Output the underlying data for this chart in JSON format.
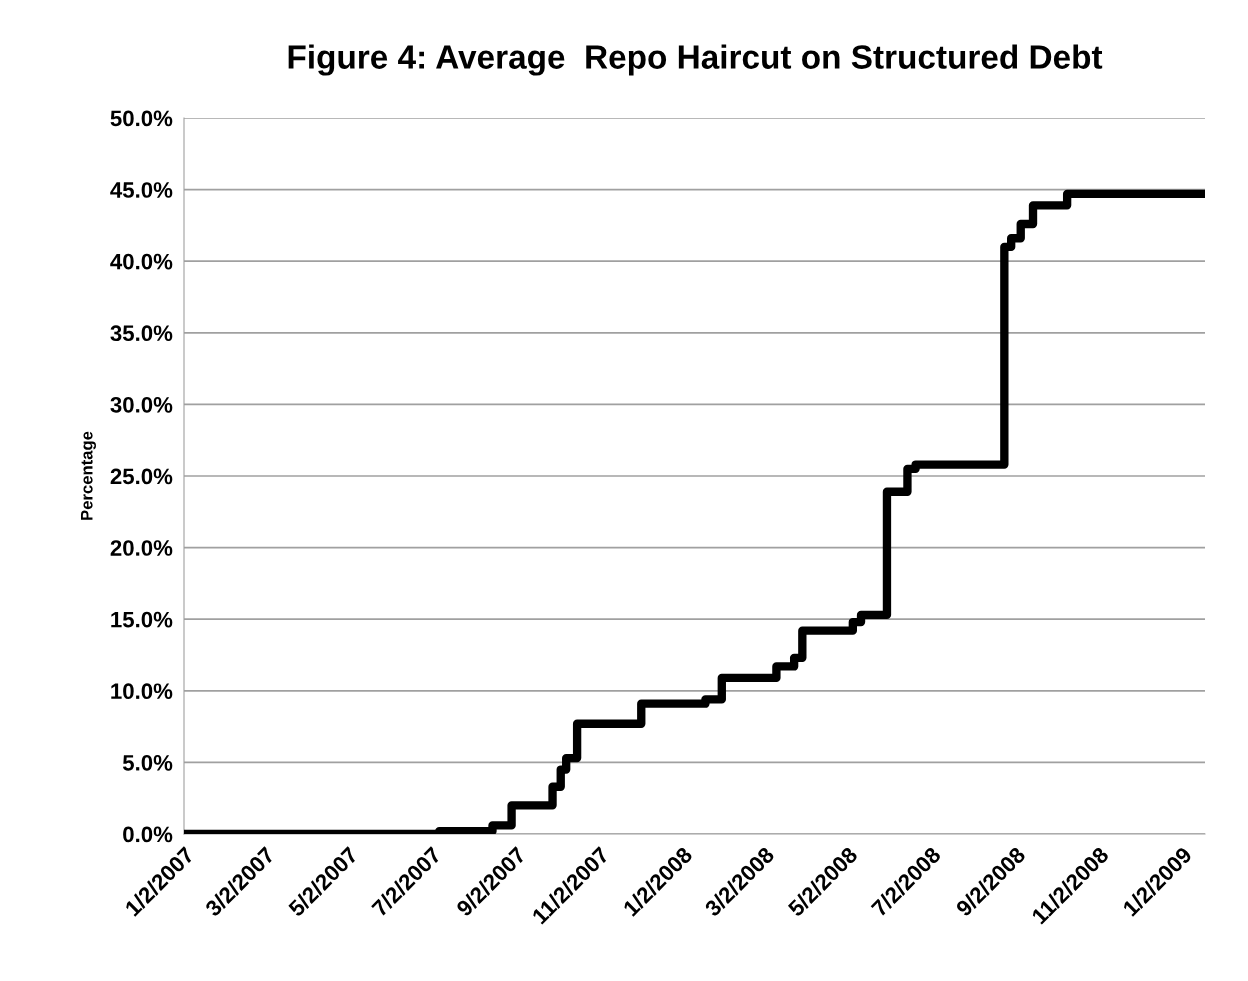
{
  "chart_data": {
    "type": "step",
    "title": "Figure 4: Average  Repo Haircut on Structured Debt",
    "ylabel": "Percentage",
    "x": [
      "2007-01-02",
      "2007-07-08",
      "2007-08-16",
      "2007-08-30",
      "2007-09-29",
      "2007-10-05",
      "2007-10-09",
      "2007-10-17",
      "2007-12-03",
      "2008-01-19",
      "2008-01-31",
      "2008-03-11",
      "2008-03-24",
      "2008-03-30",
      "2008-05-06",
      "2008-05-12",
      "2008-05-31",
      "2008-06-15",
      "2008-06-21",
      "2008-08-25",
      "2008-08-30",
      "2008-09-06",
      "2008-09-15",
      "2008-10-10",
      "2009-01-19"
    ],
    "series": [
      {
        "color": "#000000",
        "values": [
          0,
          0.2,
          0.6,
          2.0,
          3.3,
          4.5,
          5.3,
          7.7,
          9.1,
          9.4,
          10.9,
          11.7,
          12.3,
          14.2,
          14.8,
          15.3,
          23.9,
          25.5,
          25.8,
          41.0,
          41.6,
          42.6,
          43.9,
          44.7,
          44.7
        ]
      }
    ],
    "xlim": [
      "2007-01-02",
      "2009-01-19"
    ],
    "xticks": [
      {
        "value": "2007-01-02",
        "label": "1/2/2007"
      },
      {
        "value": "2007-03-02",
        "label": "3/2/2007"
      },
      {
        "value": "2007-05-02",
        "label": "5/2/2007"
      },
      {
        "value": "2007-07-02",
        "label": "7/2/2007"
      },
      {
        "value": "2007-09-02",
        "label": "9/2/2007"
      },
      {
        "value": "2007-11-02",
        "label": "11/2/2007"
      },
      {
        "value": "2008-01-02",
        "label": "1/2/2008"
      },
      {
        "value": "2008-03-02",
        "label": "3/2/2008"
      },
      {
        "value": "2008-05-02",
        "label": "5/2/2008"
      },
      {
        "value": "2008-07-02",
        "label": "7/2/2008"
      },
      {
        "value": "2008-09-02",
        "label": "9/2/2008"
      },
      {
        "value": "2008-11-02",
        "label": "11/2/2008"
      },
      {
        "value": "2009-01-02",
        "label": "1/2/2009"
      }
    ],
    "ylim": [
      0,
      50
    ],
    "yticks": [
      {
        "value": 0,
        "label": "0.0%"
      },
      {
        "value": 5,
        "label": "5.0%"
      },
      {
        "value": 10,
        "label": "10.0%"
      },
      {
        "value": 15,
        "label": "15.0%"
      },
      {
        "value": 20,
        "label": "20.0%"
      },
      {
        "value": 25,
        "label": "25.0%"
      },
      {
        "value": 30,
        "label": "30.0%"
      },
      {
        "value": 35,
        "label": "35.0%"
      },
      {
        "value": 40,
        "label": "40.0%"
      },
      {
        "value": 45,
        "label": "45.0%"
      },
      {
        "value": 50,
        "label": "50.0%"
      }
    ],
    "grid": "y",
    "legend": false,
    "line_style": "solid",
    "marker": "none"
  }
}
